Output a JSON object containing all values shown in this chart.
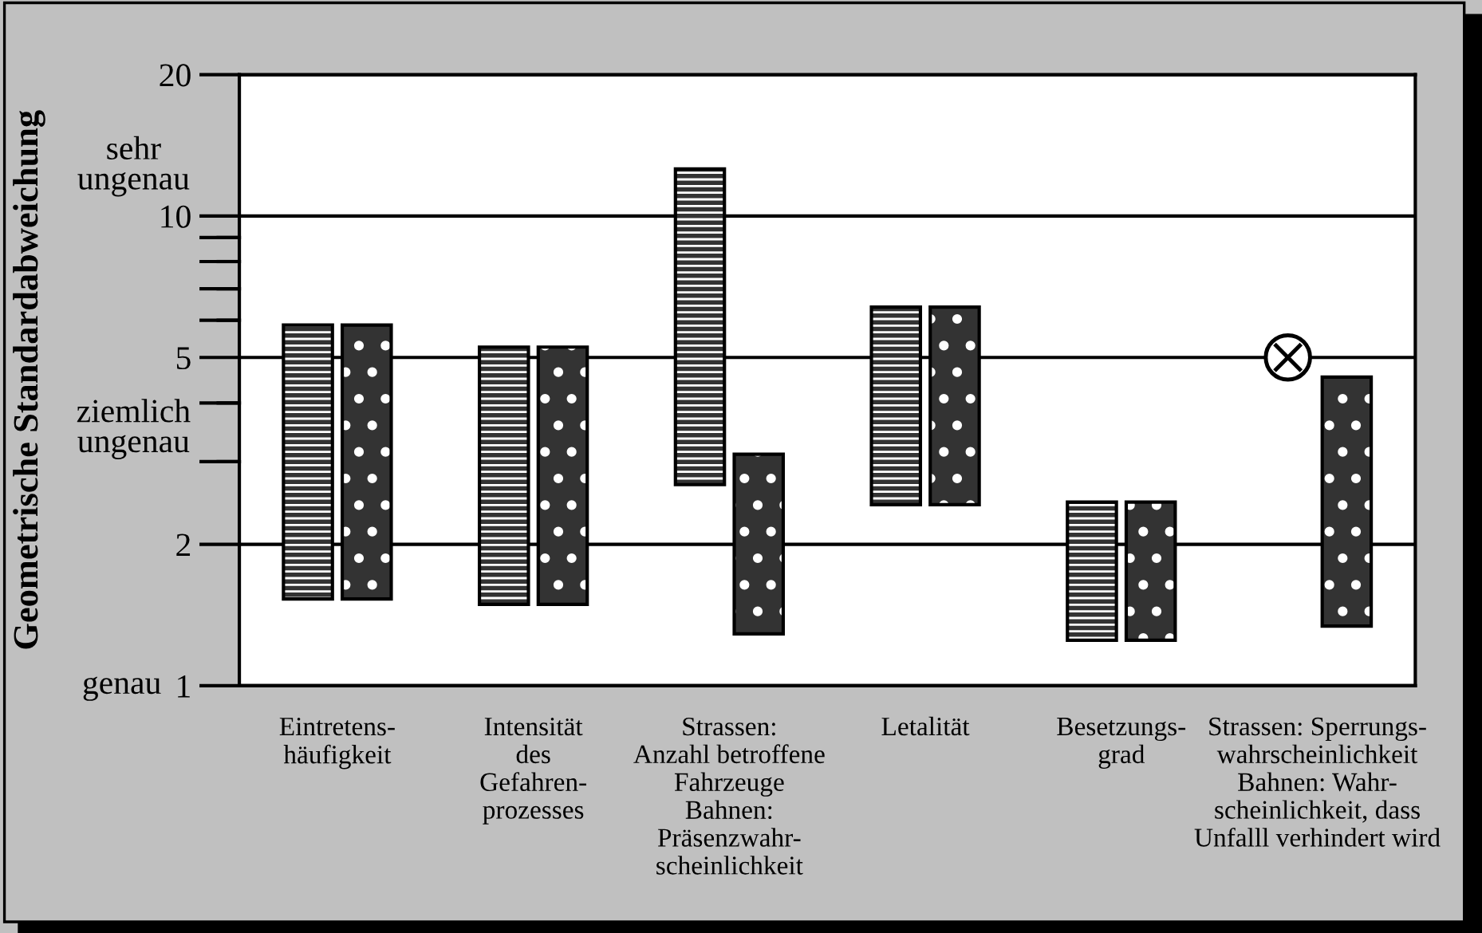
{
  "chart_data": {
    "type": "bar",
    "ylabel": "Geometrische Standardabweichung",
    "log": true,
    "categories": [
      "Eintretens-\nhäufigkeit",
      "Intensität\ndes\nGefahren-\nprozesses",
      "Strassen:\nAnzahl betroffene\nFahrzeuge\nBahnen:\nPräsenzwahr-\nscheinlichkeit",
      "Letalität",
      "Besetzungs-\ngrad",
      "Strassen: Sperrungs-\nwahrscheinlichkeit\nBahnen: Wahr-\nscheinlichkeit, dass\nUnfalll verhindert wird"
    ],
    "series": [
      {
        "color": "#ffffff",
        "base": [
          1.53,
          1.49,
          2.68,
          2.43,
          1.25,
          null
        ],
        "values": [
          4.33,
          3.77,
          9.92,
          3.97,
          1.21,
          null
        ]
      },
      {
        "color": "#333333",
        "base": [
          1.53,
          1.49,
          1.29,
          2.43,
          1.25,
          1.34
        ],
        "values": [
          4.33,
          3.77,
          1.82,
          3.97,
          1.21,
          3.2
        ]
      },
      {
        "type": "scatter",
        "color": "#ffffff",
        "marker": "circle",
        "values": [
          null,
          null,
          null,
          null,
          null,
          5
        ]
      }
    ],
    "ylim": [
      1,
      20
    ],
    "yticks": [
      1,
      2,
      {
        "value": 3,
        "label": null
      },
      {
        "value": 4,
        "label": null
      },
      5,
      {
        "value": 6,
        "label": null
      },
      {
        "value": 7,
        "label": null
      },
      {
        "value": 8,
        "label": null
      },
      {
        "value": 9,
        "label": null
      },
      10,
      20
    ],
    "grid": "y",
    "annotations": [
      "sehr\nungenau",
      "ziemlich\nungenau",
      "genau"
    ]
  }
}
